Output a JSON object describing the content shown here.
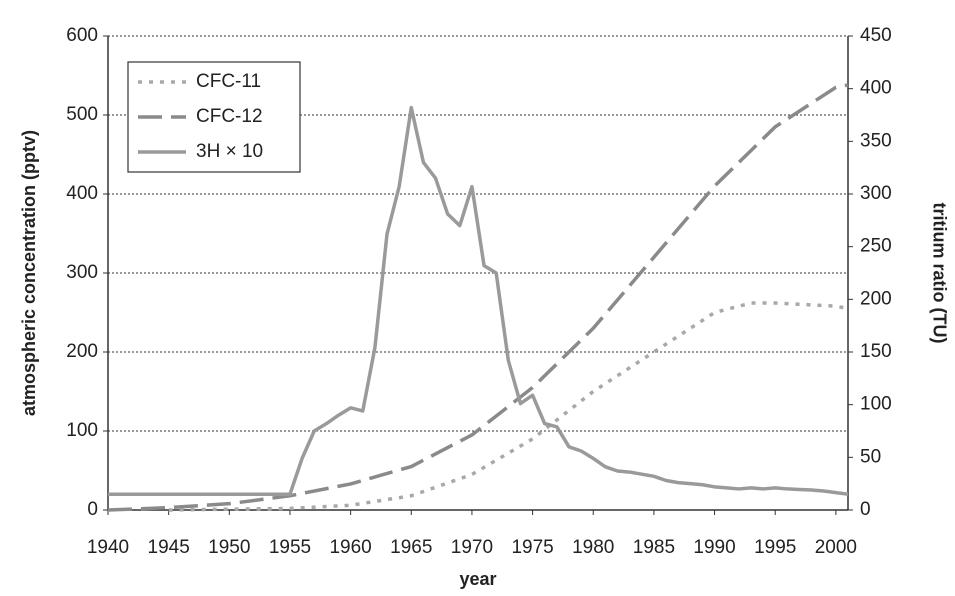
{
  "chart_data": {
    "type": "line",
    "xlabel": "year",
    "ylabel": "atmospheric concentration (pptv)",
    "y2label": "tritium ratio (TU)",
    "xlim": [
      1940,
      2001
    ],
    "xticks": [
      1940,
      1945,
      1950,
      1955,
      1960,
      1965,
      1970,
      1975,
      1980,
      1985,
      1990,
      1995,
      2000
    ],
    "ylim": [
      0,
      600
    ],
    "yticks": [
      0,
      100,
      200,
      300,
      400,
      500,
      600
    ],
    "y2lim": [
      0,
      450
    ],
    "y2ticks": [
      0,
      50,
      100,
      150,
      200,
      250,
      300,
      350,
      400,
      450
    ],
    "grid": true,
    "legend": "upper left",
    "series": [
      {
        "name": "CFC-11",
        "color": "#a8a8a8",
        "line_style": "dotted",
        "x": [
          1945,
          1950,
          1955,
          1960,
          1965,
          1970,
          1975,
          1980,
          1985,
          1990,
          1993,
          1995,
          2000,
          2001
        ],
        "values": [
          0,
          1,
          2,
          6,
          18,
          45,
          90,
          150,
          200,
          250,
          262,
          262,
          258,
          255
        ]
      },
      {
        "name": "CFC-12",
        "color": "#8a8a8a",
        "line_style": "dashed",
        "x": [
          1940,
          1945,
          1950,
          1955,
          1960,
          1965,
          1970,
          1975,
          1980,
          1985,
          1990,
          1995,
          2000,
          2001
        ],
        "values": [
          0,
          3,
          8,
          18,
          33,
          55,
          95,
          155,
          230,
          320,
          410,
          485,
          535,
          538
        ]
      },
      {
        "name": "3H × 10",
        "color": "#9a9a9a",
        "line_style": "solid",
        "axis": "y2",
        "x": [
          1940,
          1955,
          1956,
          1957,
          1958,
          1959,
          1960,
          1961,
          1962,
          1963,
          1964,
          1965,
          1966,
          1967,
          1968,
          1969,
          1970,
          1971,
          1972,
          1973,
          1974,
          1975,
          1976,
          1977,
          1978,
          1979,
          1980,
          1981,
          1982,
          1983,
          1984,
          1985,
          1986,
          1987,
          1988,
          1989,
          1990,
          1991,
          1992,
          1993,
          1994,
          1995,
          1996,
          1997,
          1998,
          1999,
          2000,
          2001
        ],
        "values": [
          15,
          15,
          49,
          75,
          82,
          90,
          97,
          94,
          154,
          262,
          307,
          382,
          330,
          315,
          281,
          270,
          307,
          232,
          225,
          142,
          101,
          109,
          82,
          79,
          60,
          56,
          49,
          41,
          37,
          36,
          34,
          32,
          28,
          26,
          25,
          24,
          22,
          21,
          20,
          21,
          20,
          21,
          20,
          19.5,
          19,
          18,
          16.5,
          15
        ]
      }
    ]
  }
}
